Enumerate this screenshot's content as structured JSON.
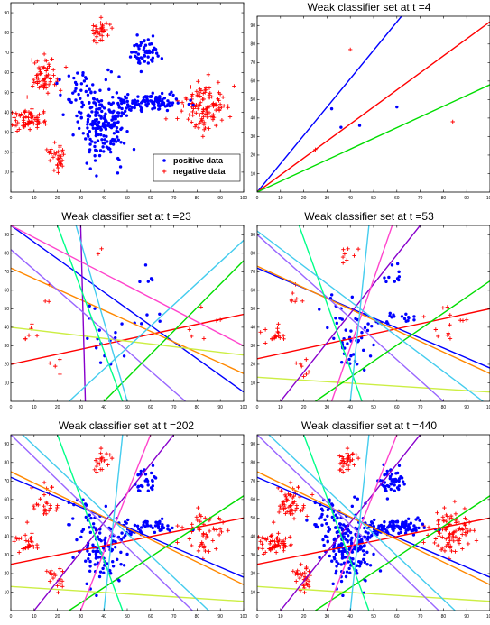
{
  "chart_data": [
    {
      "type": "scatter",
      "title": "",
      "xlim": [
        0,
        100
      ],
      "ylim": [
        0,
        95
      ],
      "xticks": [
        0,
        10,
        20,
        30,
        40,
        50,
        60,
        70,
        80,
        90,
        100
      ],
      "yticks": [
        10,
        20,
        30,
        40,
        50,
        60,
        70,
        80,
        90
      ],
      "data_density": 1.0,
      "legend": {
        "position": "bottom-right",
        "entries": [
          {
            "name": "positive data",
            "color": "#0000ff",
            "marker": "dot"
          },
          {
            "name": "negative data",
            "color": "#ff0000",
            "marker": "plus"
          }
        ]
      },
      "lines": []
    },
    {
      "type": "scatter",
      "title": "Weak classifier set at t =4",
      "xlim": [
        0,
        100
      ],
      "ylim": [
        0,
        95
      ],
      "xticks": [
        0,
        10,
        20,
        30,
        40,
        50,
        60,
        70,
        80,
        90,
        100
      ],
      "yticks": [
        10,
        20,
        30,
        40,
        50,
        60,
        70,
        80,
        90
      ],
      "points": {
        "positive": [
          [
            32,
            45
          ],
          [
            36,
            35
          ],
          [
            44,
            36
          ],
          [
            60,
            46
          ]
        ],
        "negative": [
          [
            40,
            77
          ],
          [
            25,
            23
          ],
          [
            84,
            38
          ]
        ]
      },
      "lines": [
        {
          "color": "#0000ff",
          "p1": [
            0,
            0
          ],
          "p2": [
            62,
            95
          ]
        },
        {
          "color": "#ff0000",
          "p1": [
            0,
            0
          ],
          "p2": [
            100,
            92
          ]
        },
        {
          "color": "#00dd00",
          "p1": [
            0,
            0
          ],
          "p2": [
            100,
            58
          ]
        }
      ]
    },
    {
      "type": "scatter",
      "title": "Weak classifier set at t =23",
      "xlim": [
        0,
        100
      ],
      "ylim": [
        0,
        95
      ],
      "xticks": [
        0,
        10,
        20,
        30,
        40,
        50,
        60,
        70,
        80,
        90,
        100
      ],
      "yticks": [
        10,
        20,
        30,
        40,
        50,
        60,
        70,
        80,
        90
      ],
      "data_density": 0.07,
      "lines": [
        {
          "color": "#0000ff",
          "p1": [
            0,
            95
          ],
          "p2": [
            100,
            5
          ]
        },
        {
          "color": "#ff0000",
          "p1": [
            0,
            20
          ],
          "p2": [
            100,
            47
          ]
        },
        {
          "color": "#ff8800",
          "p1": [
            0,
            72
          ],
          "p2": [
            100,
            15
          ]
        },
        {
          "color": "#ccee44",
          "p1": [
            0,
            40
          ],
          "p2": [
            100,
            25
          ]
        },
        {
          "color": "#8800cc",
          "p1": [
            30,
            95
          ],
          "p2": [
            32,
            0
          ]
        },
        {
          "color": "#9966ff",
          "p1": [
            0,
            82
          ],
          "p2": [
            75,
            0
          ]
        },
        {
          "color": "#00dd00",
          "p1": [
            40,
            0
          ],
          "p2": [
            100,
            76
          ]
        },
        {
          "color": "#00ff88",
          "p1": [
            20,
            95
          ],
          "p2": [
            48,
            0
          ]
        },
        {
          "color": "#ff44cc",
          "p1": [
            0,
            95
          ],
          "p2": [
            100,
            30
          ]
        },
        {
          "color": "#44ccee",
          "p1": [
            25,
            0
          ],
          "p2": [
            100,
            87
          ]
        },
        {
          "color": "#44ccee",
          "p1": [
            28,
            95
          ],
          "p2": [
            50,
            0
          ]
        }
      ]
    },
    {
      "type": "scatter",
      "title": "Weak classifier set at t =53",
      "xlim": [
        0,
        100
      ],
      "ylim": [
        0,
        95
      ],
      "xticks": [
        0,
        10,
        20,
        30,
        40,
        50,
        60,
        70,
        80,
        90,
        100
      ],
      "yticks": [
        10,
        20,
        30,
        40,
        50,
        60,
        70,
        80,
        90
      ],
      "data_density": 0.18,
      "lines": [
        {
          "color": "#0000ff",
          "p1": [
            0,
            72
          ],
          "p2": [
            100,
            18
          ]
        },
        {
          "color": "#ff0000",
          "p1": [
            0,
            23
          ],
          "p2": [
            100,
            50
          ]
        },
        {
          "color": "#ff8800",
          "p1": [
            0,
            73
          ],
          "p2": [
            100,
            15
          ]
        },
        {
          "color": "#ccee44",
          "p1": [
            0,
            13
          ],
          "p2": [
            100,
            5
          ]
        },
        {
          "color": "#8800cc",
          "p1": [
            10,
            0
          ],
          "p2": [
            70,
            95
          ]
        },
        {
          "color": "#9966ff",
          "p1": [
            0,
            90
          ],
          "p2": [
            80,
            0
          ]
        },
        {
          "color": "#00dd00",
          "p1": [
            25,
            0
          ],
          "p2": [
            100,
            65
          ]
        },
        {
          "color": "#00ff88",
          "p1": [
            18,
            95
          ],
          "p2": [
            45,
            0
          ]
        },
        {
          "color": "#ff44cc",
          "p1": [
            32,
            0
          ],
          "p2": [
            58,
            95
          ]
        },
        {
          "color": "#44ccee",
          "p1": [
            0,
            92
          ],
          "p2": [
            97,
            0
          ]
        },
        {
          "color": "#44ccee",
          "p1": [
            40,
            0
          ],
          "p2": [
            48,
            95
          ]
        }
      ]
    },
    {
      "type": "scatter",
      "title": "Weak classifier set at t =202",
      "xlim": [
        0,
        100
      ],
      "ylim": [
        0,
        95
      ],
      "xticks": [
        0,
        10,
        20,
        30,
        40,
        50,
        60,
        70,
        80,
        90,
        100
      ],
      "yticks": [
        10,
        20,
        30,
        40,
        50,
        60,
        70,
        80,
        90
      ],
      "data_density": 0.5,
      "lines": [
        {
          "color": "#0000ff",
          "p1": [
            0,
            72
          ],
          "p2": [
            100,
            18
          ]
        },
        {
          "color": "#ff0000",
          "p1": [
            0,
            25
          ],
          "p2": [
            100,
            50
          ]
        },
        {
          "color": "#ff8800",
          "p1": [
            0,
            75
          ],
          "p2": [
            100,
            14
          ]
        },
        {
          "color": "#ccee44",
          "p1": [
            0,
            13
          ],
          "p2": [
            100,
            5
          ]
        },
        {
          "color": "#8800cc",
          "p1": [
            10,
            0
          ],
          "p2": [
            70,
            95
          ]
        },
        {
          "color": "#9966ff",
          "p1": [
            0,
            95
          ],
          "p2": [
            78,
            0
          ]
        },
        {
          "color": "#00dd00",
          "p1": [
            25,
            0
          ],
          "p2": [
            100,
            62
          ]
        },
        {
          "color": "#00ff88",
          "p1": [
            20,
            95
          ],
          "p2": [
            48,
            0
          ]
        },
        {
          "color": "#ff44cc",
          "p1": [
            30,
            0
          ],
          "p2": [
            60,
            95
          ]
        },
        {
          "color": "#44ccee",
          "p1": [
            5,
            95
          ],
          "p2": [
            85,
            0
          ]
        },
        {
          "color": "#44ccee",
          "p1": [
            40,
            0
          ],
          "p2": [
            48,
            95
          ]
        }
      ]
    },
    {
      "type": "scatter",
      "title": "Weak classifier set at t =440",
      "xlim": [
        0,
        100
      ],
      "ylim": [
        0,
        95
      ],
      "xticks": [
        0,
        10,
        20,
        30,
        40,
        50,
        60,
        70,
        80,
        90,
        100
      ],
      "yticks": [
        10,
        20,
        30,
        40,
        50,
        60,
        70,
        80,
        90
      ],
      "data_density": 0.9,
      "lines": [
        {
          "color": "#0000ff",
          "p1": [
            0,
            72
          ],
          "p2": [
            100,
            18
          ]
        },
        {
          "color": "#ff0000",
          "p1": [
            0,
            25
          ],
          "p2": [
            100,
            50
          ]
        },
        {
          "color": "#ff8800",
          "p1": [
            0,
            75
          ],
          "p2": [
            100,
            14
          ]
        },
        {
          "color": "#ccee44",
          "p1": [
            0,
            13
          ],
          "p2": [
            100,
            5
          ]
        },
        {
          "color": "#8800cc",
          "p1": [
            10,
            0
          ],
          "p2": [
            70,
            95
          ]
        },
        {
          "color": "#9966ff",
          "p1": [
            0,
            95
          ],
          "p2": [
            78,
            0
          ]
        },
        {
          "color": "#00dd00",
          "p1": [
            25,
            0
          ],
          "p2": [
            100,
            62
          ]
        },
        {
          "color": "#00ff88",
          "p1": [
            20,
            95
          ],
          "p2": [
            48,
            0
          ]
        },
        {
          "color": "#ff44cc",
          "p1": [
            30,
            0
          ],
          "p2": [
            60,
            95
          ]
        },
        {
          "color": "#44ccee",
          "p1": [
            5,
            95
          ],
          "p2": [
            85,
            0
          ]
        },
        {
          "color": "#44ccee",
          "p1": [
            40,
            0
          ],
          "p2": [
            48,
            95
          ]
        }
      ]
    }
  ],
  "clusters": {
    "positive": [
      {
        "cx": 40,
        "cy": 35,
        "sx": 5,
        "sy": 9,
        "n": 200
      },
      {
        "cx": 58,
        "cy": 70,
        "sx": 3.5,
        "sy": 4,
        "n": 55
      },
      {
        "cx": 60,
        "cy": 45,
        "sx": 7,
        "sy": 2.5,
        "n": 110
      },
      {
        "cx": 30,
        "cy": 52,
        "sx": 5,
        "sy": 5,
        "n": 40
      }
    ],
    "negative": [
      {
        "cx": 38,
        "cy": 81,
        "sx": 1.8,
        "sy": 3,
        "n": 35
      },
      {
        "cx": 15,
        "cy": 58,
        "sx": 3,
        "sy": 4.5,
        "n": 60
      },
      {
        "cx": 8,
        "cy": 36,
        "sx": 4,
        "sy": 3,
        "n": 70
      },
      {
        "cx": 20,
        "cy": 18,
        "sx": 2,
        "sy": 4,
        "n": 35
      },
      {
        "cx": 83,
        "cy": 42,
        "sx": 5,
        "sy": 6,
        "n": 110
      }
    ]
  }
}
